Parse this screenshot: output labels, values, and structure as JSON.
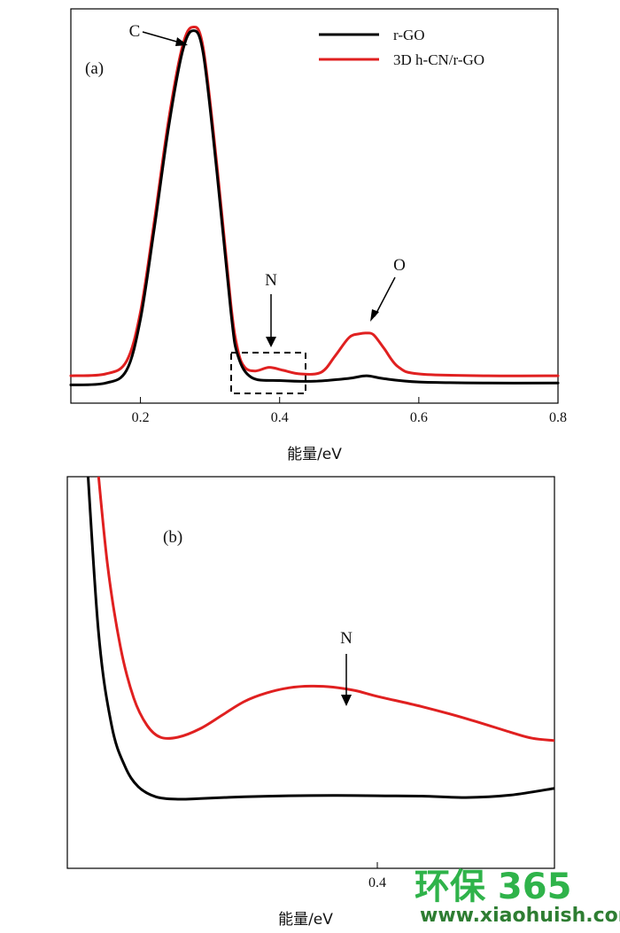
{
  "colors": {
    "rgo": "#000000",
    "hcn": "#e02020",
    "watermark": "#2fb34a"
  },
  "watermark": {
    "brand": "环保 365",
    "url": "www.xiaohuish.com"
  },
  "chart_data": [
    {
      "type": "line",
      "panel": "(a)",
      "xlabel": "能量/eV",
      "ylabel": "",
      "xlim": [
        0.1,
        0.8
      ],
      "xticks": [
        "0.2",
        "0.4",
        "0.6",
        "0.8"
      ],
      "xtick_values": [
        0.2,
        0.4,
        0.6,
        0.8
      ],
      "legend": {
        "position": "top-right",
        "entries": [
          "r-GO",
          "3D h-CN/r-GO"
        ]
      },
      "annotations": [
        {
          "text": "C",
          "x": 0.275
        },
        {
          "text": "N",
          "x": 0.385
        },
        {
          "text": "O",
          "x": 0.525
        }
      ],
      "zoom_box": {
        "xmin": 0.33,
        "xmax": 0.44
      },
      "series": [
        {
          "name": "r-GO",
          "points": [
            [
              0.1,
              0.02
            ],
            [
              0.15,
              0.025
            ],
            [
              0.18,
              0.06
            ],
            [
              0.2,
              0.2
            ],
            [
              0.22,
              0.45
            ],
            [
              0.24,
              0.72
            ],
            [
              0.26,
              0.93
            ],
            [
              0.275,
              0.99
            ],
            [
              0.29,
              0.93
            ],
            [
              0.31,
              0.6
            ],
            [
              0.33,
              0.22
            ],
            [
              0.34,
              0.1
            ],
            [
              0.36,
              0.04
            ],
            [
              0.4,
              0.032
            ],
            [
              0.45,
              0.03
            ],
            [
              0.5,
              0.038
            ],
            [
              0.525,
              0.045
            ],
            [
              0.55,
              0.037
            ],
            [
              0.6,
              0.028
            ],
            [
              0.7,
              0.025
            ],
            [
              0.8,
              0.025
            ]
          ]
        },
        {
          "name": "3D h-CN/r-GO",
          "points": [
            [
              0.1,
              0.045
            ],
            [
              0.15,
              0.05
            ],
            [
              0.18,
              0.085
            ],
            [
              0.2,
              0.22
            ],
            [
              0.22,
              0.47
            ],
            [
              0.24,
              0.74
            ],
            [
              0.26,
              0.945
            ],
            [
              0.275,
              1.0
            ],
            [
              0.29,
              0.945
            ],
            [
              0.31,
              0.62
            ],
            [
              0.33,
              0.24
            ],
            [
              0.34,
              0.115
            ],
            [
              0.35,
              0.068
            ],
            [
              0.365,
              0.058
            ],
            [
              0.385,
              0.068
            ],
            [
              0.405,
              0.06
            ],
            [
              0.43,
              0.05
            ],
            [
              0.46,
              0.055
            ],
            [
              0.48,
              0.1
            ],
            [
              0.5,
              0.15
            ],
            [
              0.515,
              0.16
            ],
            [
              0.525,
              0.162
            ],
            [
              0.535,
              0.157
            ],
            [
              0.55,
              0.12
            ],
            [
              0.57,
              0.07
            ],
            [
              0.6,
              0.05
            ],
            [
              0.7,
              0.045
            ],
            [
              0.8,
              0.045
            ]
          ]
        }
      ]
    },
    {
      "type": "line",
      "panel": "(b)",
      "xlabel": "能量/eV",
      "ylabel": "",
      "xlim": [
        0.33,
        0.44
      ],
      "xticks": [
        "0.4"
      ],
      "xtick_values": [
        0.4
      ],
      "annotations": [
        {
          "text": "N",
          "x": 0.385
        }
      ],
      "series": [
        {
          "name": "r-GO",
          "points": [
            [
              0.334,
              1.3
            ],
            [
              0.337,
              0.7
            ],
            [
              0.34,
              0.42
            ],
            [
              0.343,
              0.3
            ],
            [
              0.346,
              0.24
            ],
            [
              0.35,
              0.21
            ],
            [
              0.355,
              0.203
            ],
            [
              0.36,
              0.205
            ],
            [
              0.37,
              0.21
            ],
            [
              0.38,
              0.213
            ],
            [
              0.39,
              0.214
            ],
            [
              0.4,
              0.213
            ],
            [
              0.41,
              0.212
            ],
            [
              0.42,
              0.208
            ],
            [
              0.43,
              0.215
            ],
            [
              0.44,
              0.235
            ]
          ]
        },
        {
          "name": "3D h-CN/r-GO",
          "points": [
            [
              0.336,
              1.3
            ],
            [
              0.339,
              0.9
            ],
            [
              0.342,
              0.65
            ],
            [
              0.345,
              0.5
            ],
            [
              0.348,
              0.42
            ],
            [
              0.351,
              0.385
            ],
            [
              0.355,
              0.385
            ],
            [
              0.36,
              0.41
            ],
            [
              0.365,
              0.45
            ],
            [
              0.37,
              0.49
            ],
            [
              0.375,
              0.515
            ],
            [
              0.38,
              0.53
            ],
            [
              0.385,
              0.535
            ],
            [
              0.39,
              0.532
            ],
            [
              0.395,
              0.522
            ],
            [
              0.4,
              0.505
            ],
            [
              0.41,
              0.475
            ],
            [
              0.42,
              0.44
            ],
            [
              0.43,
              0.4
            ],
            [
              0.435,
              0.382
            ],
            [
              0.44,
              0.375
            ]
          ]
        }
      ]
    }
  ]
}
